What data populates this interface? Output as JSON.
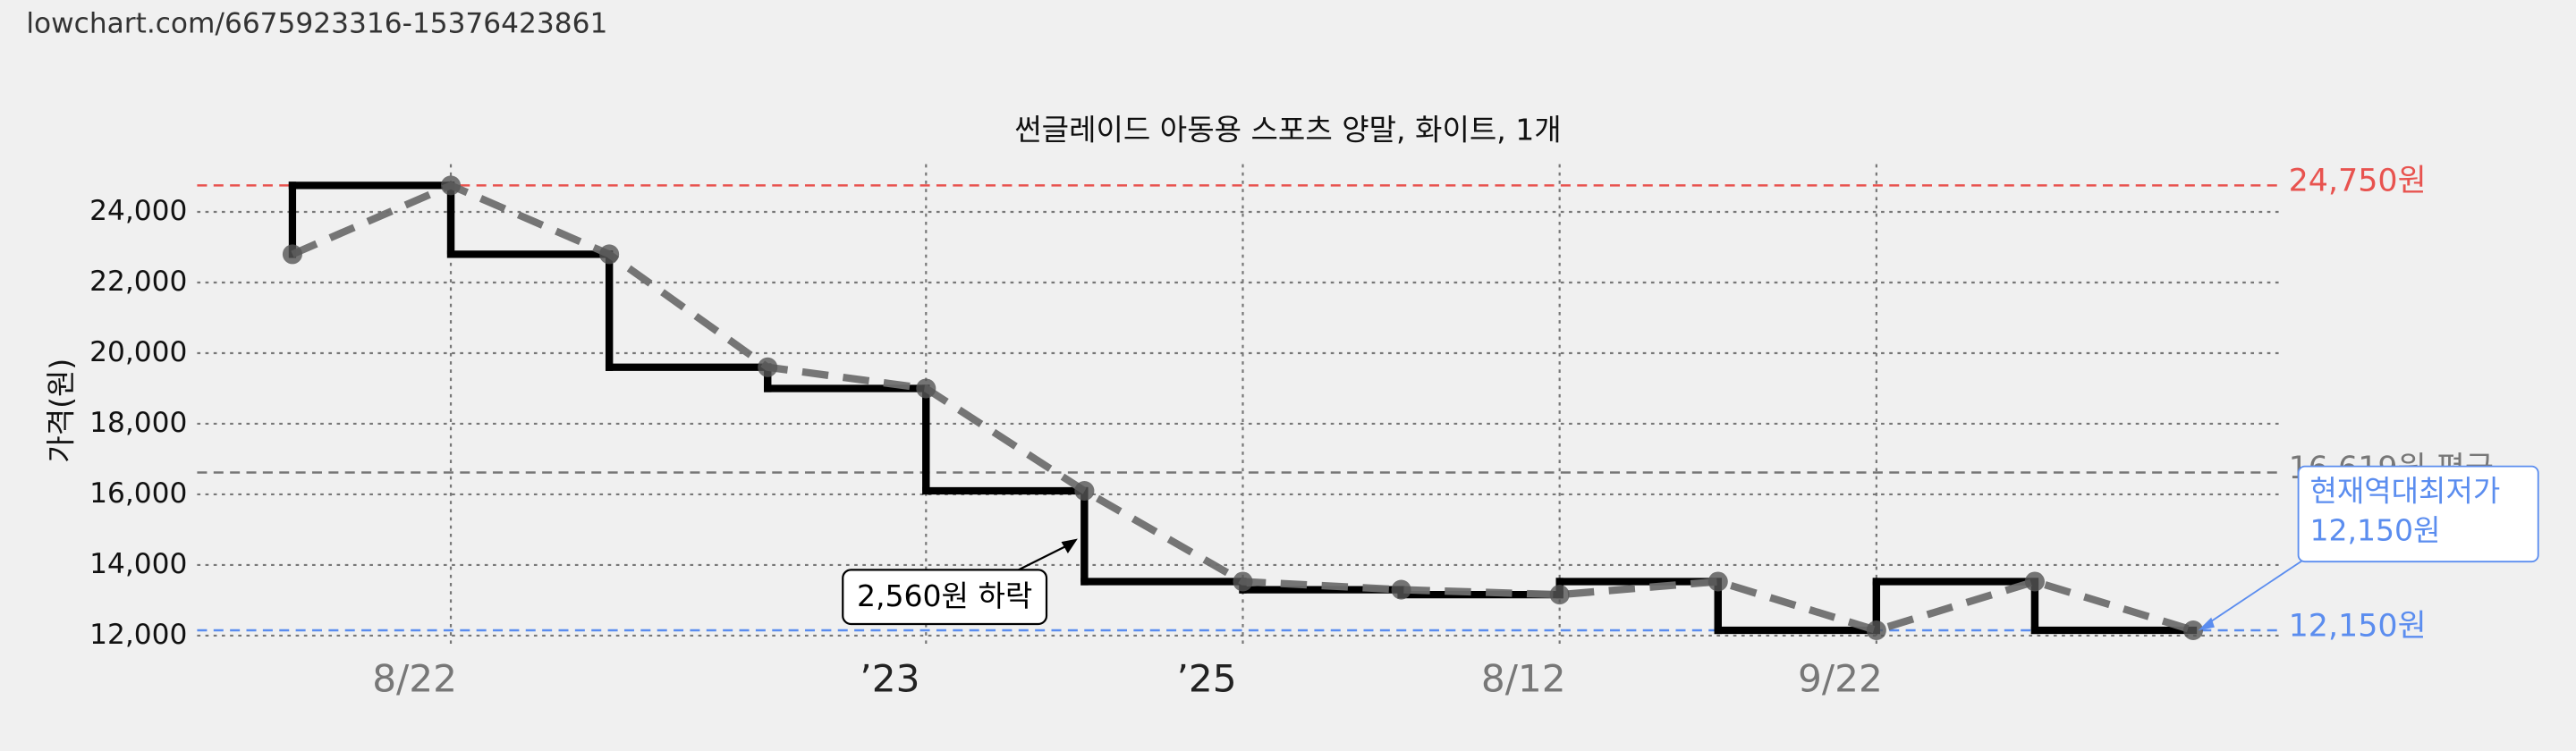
{
  "url": "lowchart.com/6675923316-15376423861",
  "chart_data": {
    "type": "step-line",
    "title": "썬글레이드 아동용 스포츠 양말, 화이트, 1개",
    "y_label": "가격(원)",
    "categories": [
      null,
      "8/22",
      null,
      null,
      "’23",
      null,
      "’25",
      null,
      "8/12",
      null,
      "9/22",
      null,
      null
    ],
    "values": [
      22800,
      24750,
      22800,
      19600,
      19000,
      16100,
      13530,
      13300,
      13160,
      13530,
      12150,
      13530,
      12150
    ],
    "line_color": "#6e6e6e",
    "step_color": "#000000",
    "ylim": [
      11770,
      25350
    ],
    "yticks": [
      {
        "value": 12000,
        "label": "12,000"
      },
      {
        "value": 14000,
        "label": "14,000"
      },
      {
        "value": 16000,
        "label": "16,000"
      },
      {
        "value": 18000,
        "label": "18,000"
      },
      {
        "value": 20000,
        "label": "20,000"
      },
      {
        "value": 22000,
        "label": "22,000"
      },
      {
        "value": 24000,
        "label": "24,000"
      }
    ],
    "grid": true,
    "reference_lines": [
      {
        "value": 24750,
        "label": "24,750원",
        "color": "#e8534f"
      },
      {
        "value": 16619,
        "label": "16,619원 평균",
        "color": "#777777"
      },
      {
        "value": 12150,
        "label": "12,150원",
        "color": "#5b8def"
      }
    ],
    "annotations": [
      {
        "text": "2,560원 하락"
      },
      {
        "text": [
          "현재역대최저가",
          "12,150원"
        ]
      }
    ]
  }
}
